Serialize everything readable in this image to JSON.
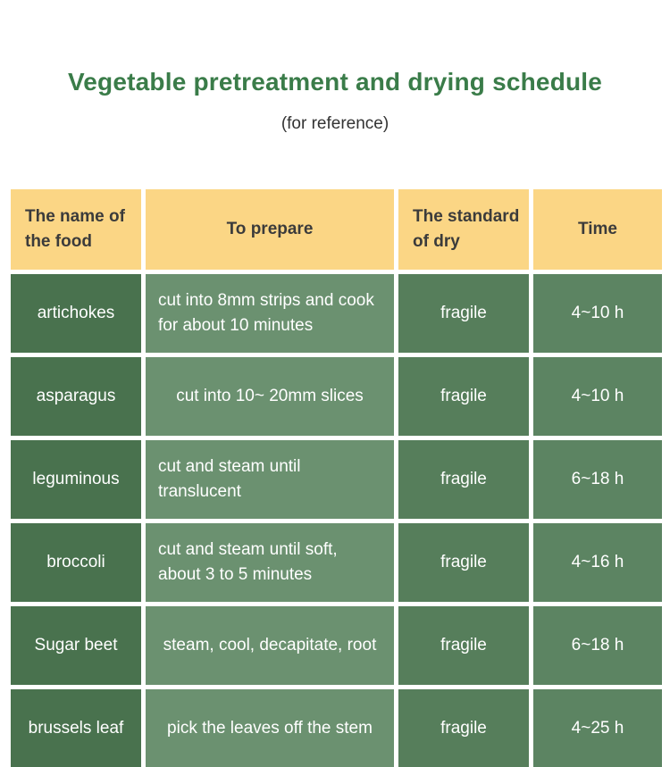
{
  "page": {
    "title": "Vegetable pretreatment and drying schedule",
    "subtitle": "(for reference)"
  },
  "colors": {
    "title_green": "#3a7c49",
    "header_yellow": "#fbd685",
    "name_column_green": "#49724e",
    "prepare_column_green": "#6b9170",
    "standard_column_green": "#567e5b",
    "time_column_green": "#5c8462",
    "cell_text": "#ffffff",
    "header_text": "#3b3b3b"
  },
  "table": {
    "headers": [
      "The name of the food",
      "To prepare",
      "The standard of dry",
      "Time"
    ],
    "rows": [
      {
        "name": "artichokes",
        "prepare": "cut into 8mm strips and cook for about 10 minutes",
        "standard": "fragile",
        "time": "4~10 h"
      },
      {
        "name": "asparagus",
        "prepare": "cut into 10~ 20mm slices",
        "standard": "fragile",
        "time": "4~10 h"
      },
      {
        "name": "leguminous",
        "prepare": "cut and steam until translucent",
        "standard": "fragile",
        "time": "6~18 h"
      },
      {
        "name": "broccoli",
        "prepare": "cut and steam until soft, about 3 to 5 minutes",
        "standard": "fragile",
        "time": "4~16 h"
      },
      {
        "name": "Sugar beet",
        "prepare": "steam, cool, decapitate, root",
        "standard": "fragile",
        "time": "6~18 h"
      },
      {
        "name": "brussels leaf",
        "prepare": "pick the leaves off the stem",
        "standard": "fragile",
        "time": "4~25 h"
      }
    ]
  }
}
